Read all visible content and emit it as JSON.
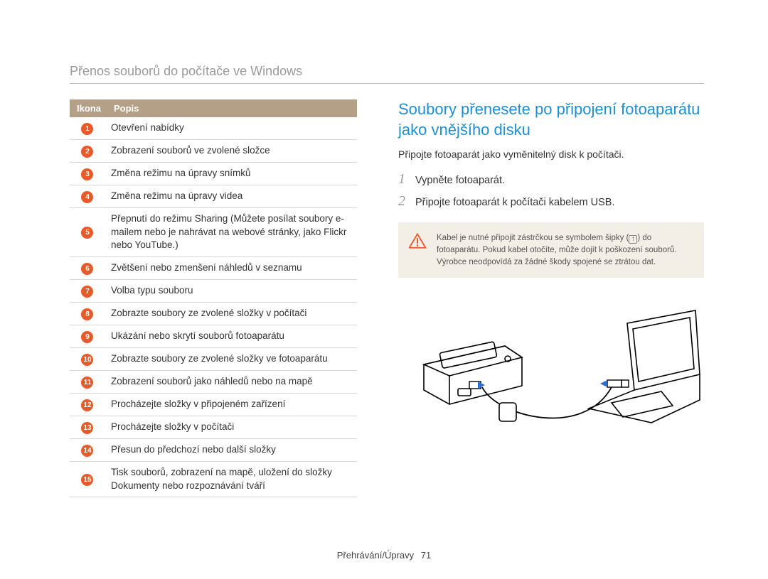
{
  "page_title": "Přenos souborů do počítače ve Windows",
  "table": {
    "header_icon": "Ikona",
    "header_desc": "Popis",
    "header_bg": "#b49f87",
    "header_fg": "#ffffff",
    "border_color": "#d7d7d7",
    "badge_bg": "#e85a2a",
    "badge_fg": "#ffffff",
    "rows": [
      {
        "n": "1",
        "desc": "Otevření nabídky"
      },
      {
        "n": "2",
        "desc": "Zobrazení souborů ve zvolené složce"
      },
      {
        "n": "3",
        "desc": "Změna režimu na úpravy snímků"
      },
      {
        "n": "4",
        "desc": "Změna režimu na úpravy videa"
      },
      {
        "n": "5",
        "desc": "Přepnutí do režimu Sharing (Můžete posílat soubory e-mailem nebo je nahrávat na webové stránky, jako Flickr nebo YouTube.)"
      },
      {
        "n": "6",
        "desc": "Zvětšení nebo zmenšení náhledů v seznamu"
      },
      {
        "n": "7",
        "desc": "Volba typu souboru"
      },
      {
        "n": "8",
        "desc": "Zobrazte soubory ze zvolené složky v počítači"
      },
      {
        "n": "9",
        "desc": "Ukázání nebo skrytí souborů fotoaparátu"
      },
      {
        "n": "10",
        "desc": "Zobrazte soubory ze zvolené složky ve fotoaparátu"
      },
      {
        "n": "11",
        "desc": "Zobrazení souborů jako náhledů nebo na mapě"
      },
      {
        "n": "12",
        "desc": "Procházejte složky v připojeném zařízení"
      },
      {
        "n": "13",
        "desc": "Procházejte složky v počítači"
      },
      {
        "n": "14",
        "desc": "Přesun do předchozí nebo další složky"
      },
      {
        "n": "15",
        "desc": "Tisk souborů, zobrazení na mapě, uložení do složky Dokumenty nebo rozpoznávání tváří"
      }
    ]
  },
  "section": {
    "heading": "Soubory přenesete po připojení fotoaparátu jako vnějšího disku",
    "heading_color": "#1e8fd5",
    "intro": "Připojte fotoaparát jako vyměnitelný disk k počítači.",
    "steps": [
      {
        "n": "1",
        "text": "Vypněte fotoaparát."
      },
      {
        "n": "2",
        "text": "Připojte fotoaparát k počítači kabelem USB."
      }
    ],
    "step_number_color": "#9a9a9a"
  },
  "note": {
    "bg": "#f4efe6",
    "icon_color": "#e85a2a",
    "line1_a": "Kabel je nutné připojit zástrčkou se symbolem šipky (",
    "line1_b": ") do fotoaparátu. Pokud kabel otočíte, může dojít k poškození souborů. Výrobce neodpovídá za žádné škody spojené se ztrátou dat.",
    "arrow_glyph": "↑"
  },
  "diagram": {
    "stroke": "#000000",
    "usb_accent": "#2a6fd6"
  },
  "footer": {
    "section": "Přehrávání/Úpravy",
    "page": "71"
  }
}
